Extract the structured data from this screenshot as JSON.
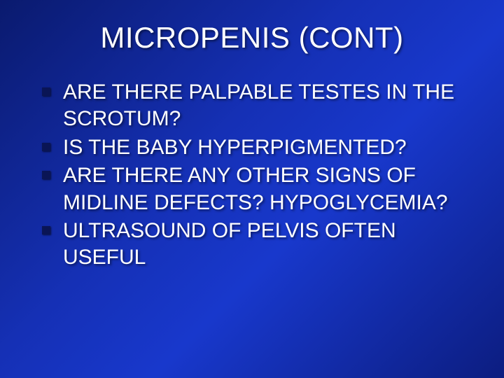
{
  "slide": {
    "title": "MICROPENIS (CONT)",
    "background_gradient": {
      "start": "#0a1a6e",
      "mid1": "#1530b5",
      "mid2": "#1838cc",
      "end": "#0c1d80"
    },
    "text_color": "#ffffff",
    "title_fontsize": 42,
    "body_fontsize": 30,
    "bullet_marker_color": "#0a1555",
    "bullet_marker_size": 12,
    "bullets": [
      {
        "text": "ARE THERE PALPABLE TESTES IN THE SCROTUM?"
      },
      {
        "text": "IS THE BABY HYPERPIGMENTED?"
      },
      {
        "text": "ARE THERE ANY OTHER SIGNS OF MIDLINE DEFECTS? HYPOGLYCEMIA?"
      },
      {
        "text": "ULTRASOUND OF PELVIS OFTEN USEFUL"
      }
    ]
  }
}
